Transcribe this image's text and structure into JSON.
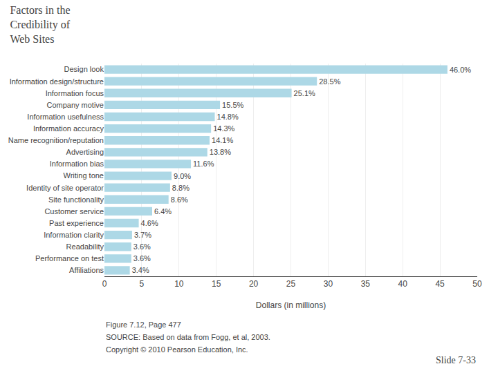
{
  "chart_data": {
    "type": "bar",
    "orientation": "horizontal",
    "title": "Factors in the\nCredibility of\nWeb Sites",
    "categories": [
      "Design look",
      "Information design/structure",
      "Information focus",
      "Company motive",
      "Information usefulness",
      "Information accuracy",
      "Name recognition/reputation",
      "Advertising",
      "Information bias",
      "Writing tone",
      "Identity of site operator",
      "Site functionality",
      "Customer service",
      "Past experience",
      "Information clarity",
      "Readability",
      "Performance on test",
      "Affiliations"
    ],
    "values": [
      46.0,
      28.5,
      25.1,
      15.5,
      14.8,
      14.3,
      14.1,
      13.8,
      11.6,
      9.0,
      8.8,
      8.6,
      6.4,
      4.6,
      3.7,
      3.6,
      3.6,
      3.4
    ],
    "value_labels": [
      "46.0%",
      "28.5%",
      "25.1%",
      "15.5%",
      "14.8%",
      "14.3%",
      "14.1%",
      "13.8%",
      "11.6%",
      "9.0%",
      "8.8%",
      "8.6%",
      "6.4%",
      "4.6%",
      "3.7%",
      "3.6%",
      "3.6%",
      "3.4%"
    ],
    "data_labels": true,
    "color": "#ADD8E6",
    "xlabel": "Dollars (in millions)",
    "xlim": [
      0,
      50
    ],
    "xticks": [
      0,
      5,
      10,
      15,
      20,
      25,
      30,
      35,
      40,
      45,
      50
    ],
    "grid": true,
    "annotations": [
      "Figure 7.12, Page 477",
      "SOURCE: Based on data from Fogg, et al, 2003.",
      "Copyright © 2010 Pearson Education, Inc.",
      "Slide 7-33"
    ]
  }
}
